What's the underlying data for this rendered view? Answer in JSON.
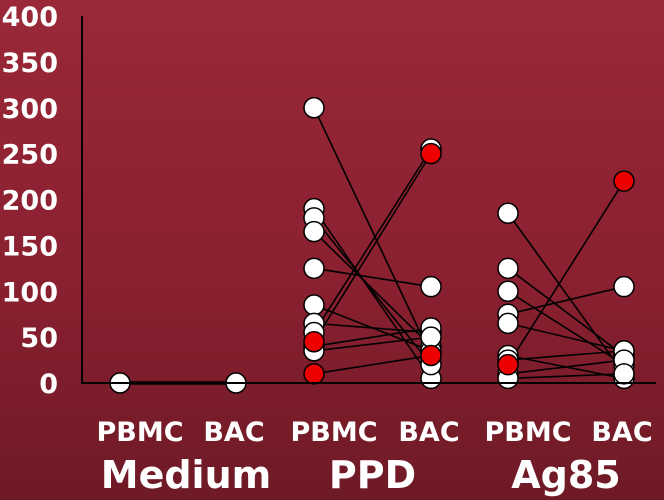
{
  "chart_data": {
    "type": "scatter",
    "title": "",
    "xlabel": "",
    "ylabel": "",
    "ylim": [
      0,
      400
    ],
    "yticks": [
      0,
      50,
      100,
      150,
      200,
      250,
      300,
      350,
      400
    ],
    "groups": [
      {
        "name": "Medium",
        "sub_labels": [
          "PBMC",
          "BAC"
        ]
      },
      {
        "name": "PPD",
        "sub_labels": [
          "PBMC",
          "BAC"
        ]
      },
      {
        "name": "Ag85",
        "sub_labels": [
          "PBMC",
          "BAC"
        ]
      }
    ],
    "colors": {
      "normal": "#ffffff",
      "highlight": "#ee0000",
      "line": "#000000",
      "axis": "#000000"
    },
    "pairs": [
      {
        "group": "Medium",
        "pbmc": 0,
        "bac": 0,
        "highlight": false
      },
      {
        "group": "PPD",
        "pbmc": 300,
        "bac": 30,
        "highlight": false
      },
      {
        "group": "PPD",
        "pbmc": 190,
        "bac": 5,
        "highlight": false
      },
      {
        "group": "PPD",
        "pbmc": 180,
        "bac": 20,
        "highlight": false
      },
      {
        "group": "PPD",
        "pbmc": 165,
        "bac": 40,
        "highlight": false
      },
      {
        "group": "PPD",
        "pbmc": 125,
        "bac": 105,
        "highlight": false
      },
      {
        "group": "PPD",
        "pbmc": 85,
        "bac": 35,
        "highlight": false
      },
      {
        "group": "PPD",
        "pbmc": 65,
        "bac": 55,
        "highlight": false
      },
      {
        "group": "PPD",
        "pbmc": 55,
        "bac": 255,
        "highlight": false
      },
      {
        "group": "PPD",
        "pbmc": 45,
        "bac": 250,
        "highlight": true
      },
      {
        "group": "PPD",
        "pbmc": 40,
        "bac": 60,
        "highlight": false
      },
      {
        "group": "PPD",
        "pbmc": 35,
        "bac": 50,
        "highlight": false
      },
      {
        "group": "PPD",
        "pbmc": 10,
        "bac": 30,
        "highlight": true
      },
      {
        "group": "Ag85",
        "pbmc": 185,
        "bac": 10,
        "highlight": false
      },
      {
        "group": "Ag85",
        "pbmc": 125,
        "bac": 30,
        "highlight": false
      },
      {
        "group": "Ag85",
        "pbmc": 100,
        "bac": 20,
        "highlight": false
      },
      {
        "group": "Ag85",
        "pbmc": 75,
        "bac": 105,
        "highlight": false
      },
      {
        "group": "Ag85",
        "pbmc": 65,
        "bac": 35,
        "highlight": false
      },
      {
        "group": "Ag85",
        "pbmc": 30,
        "bac": 5,
        "highlight": false
      },
      {
        "group": "Ag85",
        "pbmc": 25,
        "bac": 35,
        "highlight": false
      },
      {
        "group": "Ag85",
        "pbmc": 20,
        "bac": 220,
        "highlight": true
      },
      {
        "group": "Ag85",
        "pbmc": 10,
        "bac": 25,
        "highlight": false
      },
      {
        "group": "Ag85",
        "pbmc": 5,
        "bac": 10,
        "highlight": false
      }
    ]
  }
}
